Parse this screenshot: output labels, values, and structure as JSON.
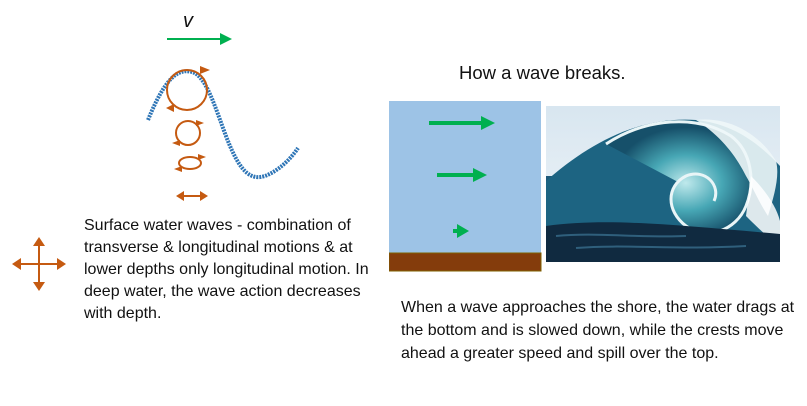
{
  "left": {
    "velocity_label": "v",
    "description": "Surface water waves - combination of transverse  & longitudinal motions & at lower depths only longitudinal motion. In deep water, the wave action decreases with depth."
  },
  "right": {
    "title": "How a wave breaks.",
    "description": "When  a wave approaches the shore, the water drags at the bottom and is slowed down, while the crests move ahead a greater speed and spill over the top."
  },
  "colors": {
    "arrow_green": "#00b050",
    "wave_blue": "#2e75b6",
    "orbit_orange": "#c55a11",
    "water_blue": "#9dc3e6",
    "seabed_brown": "#843c0c"
  },
  "icons": [
    "velocity-arrow-icon",
    "orbit-circle-icon",
    "double-arrow-icon",
    "four-way-arrow-icon",
    "flow-arrow-icon"
  ]
}
